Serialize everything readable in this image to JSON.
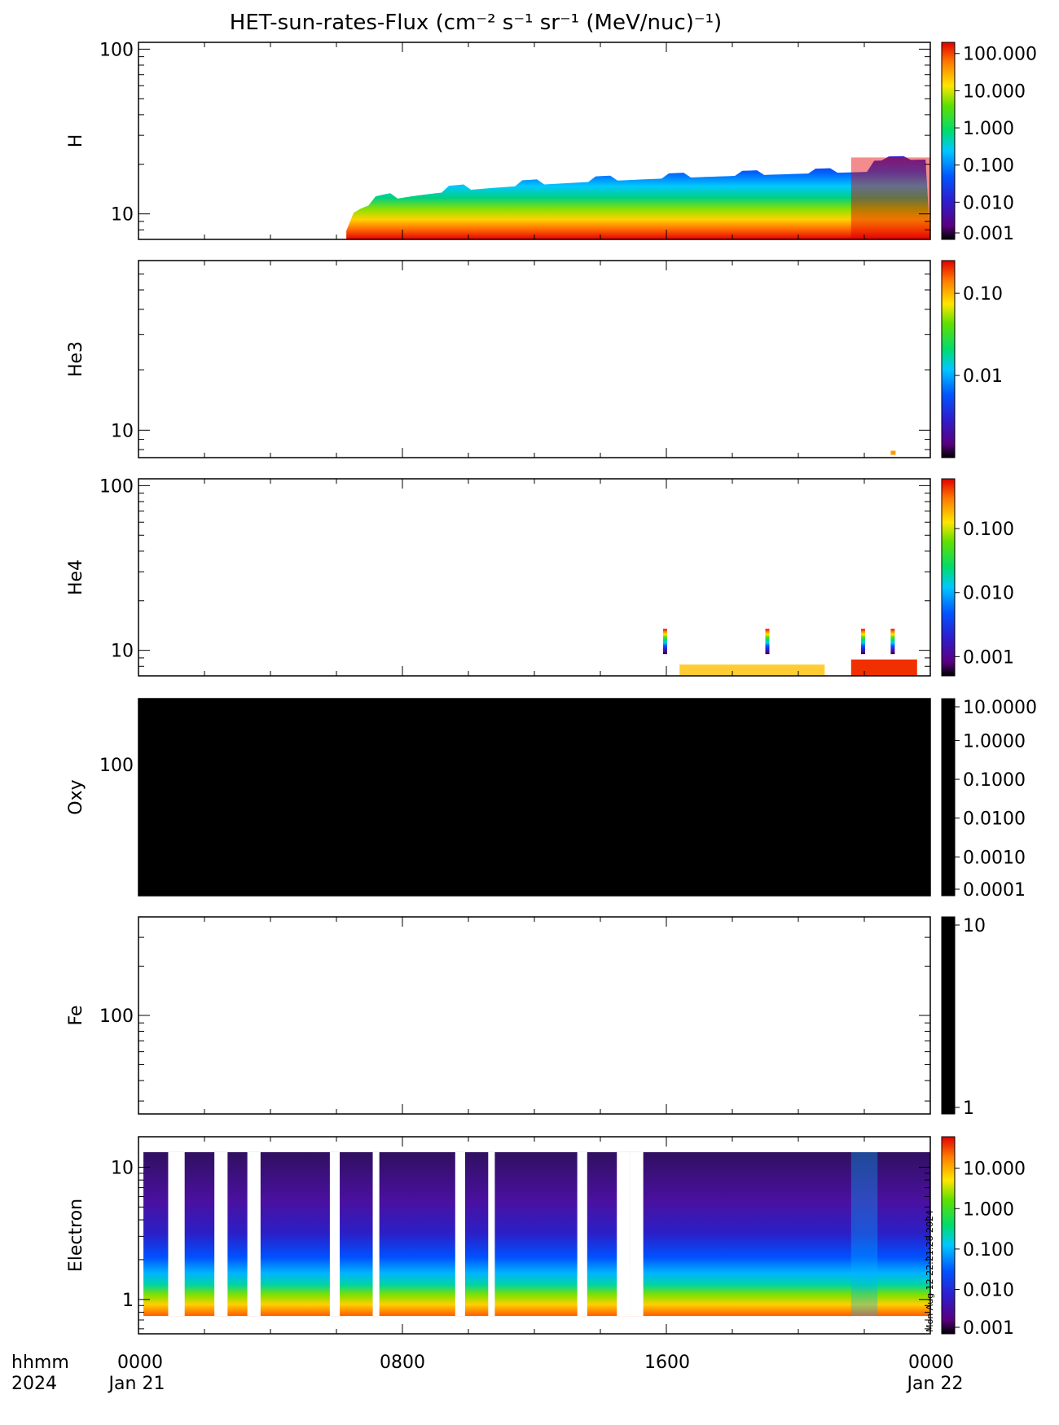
{
  "title": "HET-sun-rates-Flux",
  "title_units": "(cm⁻² s⁻¹ sr⁻¹ (MeV/nuc)⁻¹)",
  "chart_data": [
    {
      "type": "heatmap",
      "ylabel": "H",
      "yscale": "log",
      "ylim": [
        7,
        110
      ],
      "y_ticks": [
        "10",
        "100"
      ],
      "colorbar": {
        "scale": "log",
        "range": [
          0.001,
          200
        ],
        "tick_labels": [
          "100.000",
          "10.000",
          "1.000",
          "0.100",
          "0.010",
          "0.001"
        ]
      },
      "fill": "empty"
    },
    {
      "type": "heatmap",
      "ylabel": "He3",
      "yscale": "log",
      "ylim": [
        7.3,
        70
      ],
      "y_ticks": [
        "10"
      ],
      "colorbar": {
        "scale": "log",
        "range": [
          0.001,
          0.25
        ],
        "tick_labels": [
          "0.10",
          "0.01"
        ]
      },
      "fill": "empty"
    },
    {
      "type": "heatmap",
      "ylabel": "He4",
      "yscale": "log",
      "ylim": [
        7,
        110
      ],
      "y_ticks": [
        "10",
        "100"
      ],
      "colorbar": {
        "scale": "log",
        "range": [
          0.0005,
          0.6
        ],
        "tick_labels": [
          "0.100",
          "0.010",
          "0.001"
        ]
      },
      "fill": "empty"
    },
    {
      "type": "heatmap",
      "ylabel": "Oxy",
      "yscale": "log",
      "ylim": [
        13,
        280
      ],
      "y_ticks": [
        "100"
      ],
      "colorbar": {
        "scale": "log",
        "range": [
          0.0001,
          12
        ],
        "tick_labels": [
          "10.0000",
          "1.0000",
          "0.1000",
          "0.0100",
          "0.0010",
          "0.0001"
        ]
      },
      "fill": "black"
    },
    {
      "type": "heatmap",
      "ylabel": "Fe",
      "yscale": "log",
      "ylim": [
        25,
        400
      ],
      "y_ticks": [
        "100"
      ],
      "colorbar": {
        "scale": "log",
        "range": [
          1,
          10
        ],
        "tick_labels": [
          "10",
          "1"
        ]
      },
      "fill": "white"
    },
    {
      "type": "heatmap",
      "ylabel": "Electron",
      "yscale": "log",
      "ylim": [
        0.55,
        17
      ],
      "y_ticks": [
        "1",
        "10"
      ],
      "colorbar": {
        "scale": "log",
        "range": [
          0.0008,
          60
        ],
        "tick_labels": [
          "10.000",
          "1.000",
          "0.100",
          "0.010",
          "0.001"
        ]
      },
      "fill": "electron"
    }
  ],
  "x_axis": {
    "range_hours": [
      0,
      24
    ],
    "ticks": [
      {
        "hour": 0,
        "label": "0000",
        "date": "Jan 21"
      },
      {
        "hour": 8,
        "label": "0800",
        "date": ""
      },
      {
        "hour": 16,
        "label": "1600",
        "date": ""
      },
      {
        "hour": 24,
        "label": "0000",
        "date": "Jan 22"
      }
    ],
    "format_label": "hhmm",
    "year_label": "2024"
  },
  "timestamp": "Mon Aug 12 22:21:28 2024"
}
